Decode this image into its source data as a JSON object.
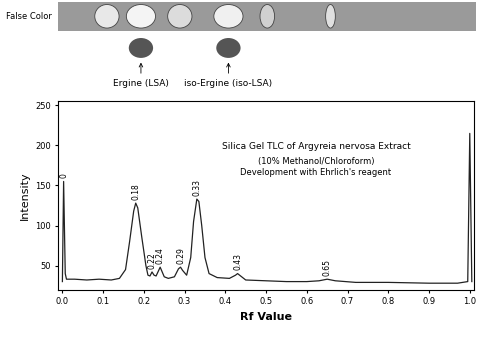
{
  "chart_data": {
    "type": "line",
    "xlabel": "Rf Value",
    "ylabel": "Intensity",
    "annotations": [
      "Silica Gel TLC of Argyreia nervosa Extract",
      "(10% Methanol/Chloroform)",
      "Development with Ehrlich's reagent"
    ],
    "plate": {
      "false_color_label": "False Color",
      "bands": [
        "Ergine (LSA)",
        "iso-Ergine (iso-LSA)"
      ]
    },
    "x": [
      0.0,
      0.003,
      0.007,
      0.01,
      0.03,
      0.06,
      0.09,
      0.12,
      0.14,
      0.155,
      0.165,
      0.175,
      0.18,
      0.185,
      0.195,
      0.205,
      0.21,
      0.215,
      0.22,
      0.225,
      0.23,
      0.24,
      0.245,
      0.25,
      0.26,
      0.275,
      0.285,
      0.29,
      0.295,
      0.305,
      0.315,
      0.322,
      0.33,
      0.335,
      0.342,
      0.35,
      0.36,
      0.38,
      0.41,
      0.425,
      0.43,
      0.435,
      0.45,
      0.5,
      0.55,
      0.6,
      0.63,
      0.65,
      0.67,
      0.72,
      0.8,
      0.9,
      0.97,
      0.995,
      1.0,
      1.005
    ],
    "values": [
      30,
      155,
      40,
      33,
      33,
      32,
      33,
      32,
      34,
      45,
      80,
      118,
      128,
      122,
      85,
      50,
      38,
      37,
      42,
      38,
      37,
      48,
      42,
      36,
      34,
      36,
      46,
      48,
      44,
      38,
      60,
      105,
      133,
      130,
      100,
      60,
      40,
      35,
      34,
      38,
      40,
      38,
      32,
      31,
      30,
      30,
      31,
      33,
      31,
      29,
      29,
      28,
      28,
      30,
      215,
      30
    ],
    "color": "#222222",
    "peak_labels": [
      {
        "x": 0.003,
        "label": "0"
      },
      {
        "x": 0.18,
        "label": "0.18"
      },
      {
        "x": 0.22,
        "label": "0.22"
      },
      {
        "x": 0.24,
        "label": "0.24"
      },
      {
        "x": 0.29,
        "label": "0.29"
      },
      {
        "x": 0.33,
        "label": "0.33"
      },
      {
        "x": 0.43,
        "label": "0.43"
      },
      {
        "x": 0.65,
        "label": "0.65"
      }
    ],
    "xlim": [
      -0.01,
      1.01
    ],
    "ylim": [
      20,
      255
    ],
    "xticks": [
      0.0,
      0.1,
      0.2,
      0.3,
      0.4,
      0.5,
      0.6,
      0.7,
      0.8,
      0.9,
      1.0
    ],
    "yticks": [
      50,
      100,
      150,
      200,
      250
    ],
    "grid": false
  }
}
